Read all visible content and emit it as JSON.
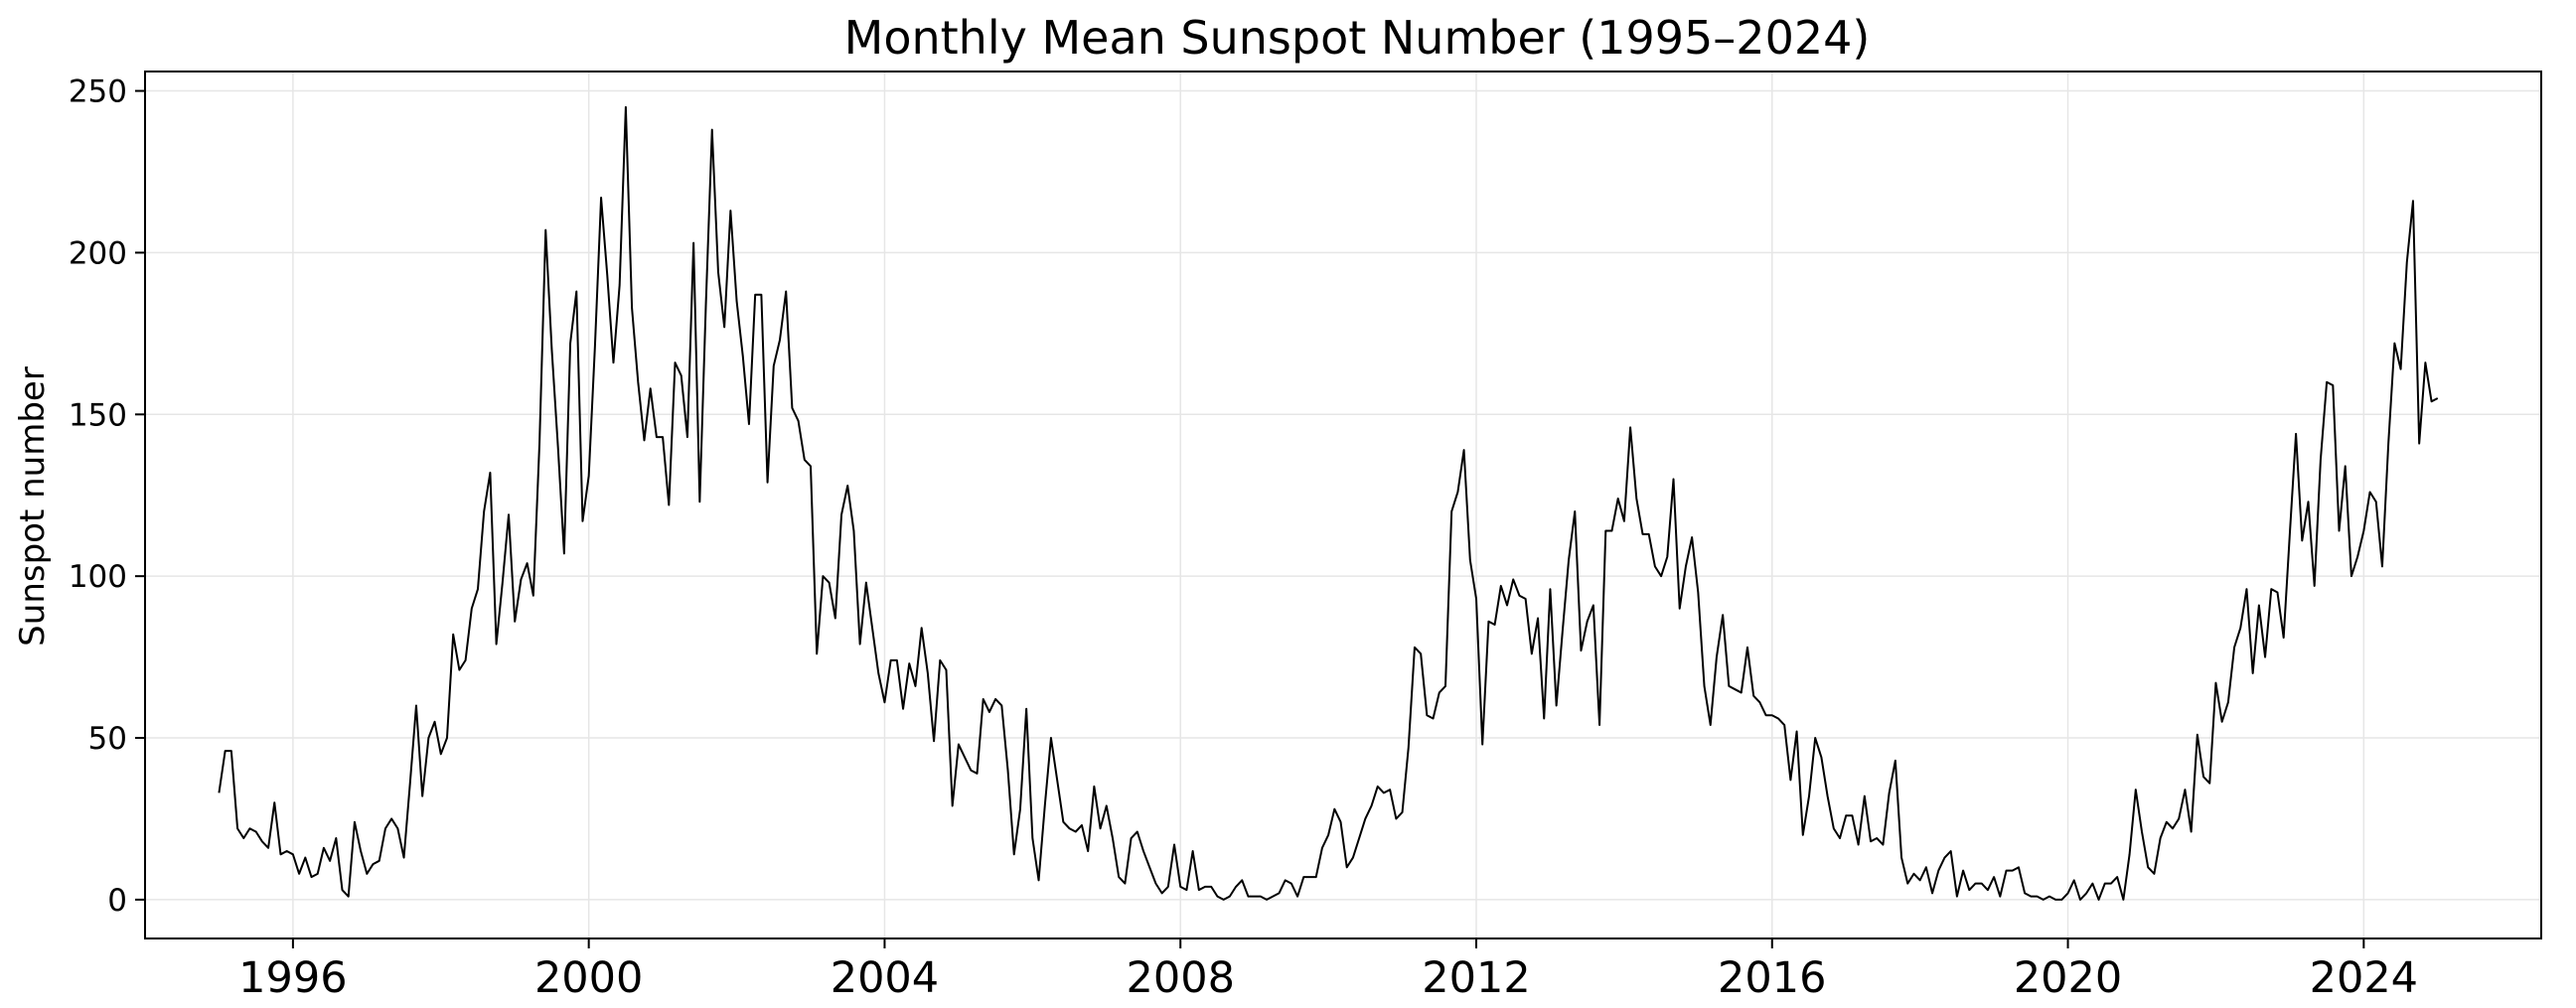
{
  "chart_data": {
    "type": "line",
    "title": "Monthly Mean Sunspot Number (1995–2024)",
    "xlabel": "",
    "ylabel": "Sunspot number",
    "xlim": [
      1994.0,
      2026.4
    ],
    "ylim": [
      -12,
      256
    ],
    "x_ticks": [
      1996,
      2000,
      2004,
      2008,
      2012,
      2016,
      2020,
      2024
    ],
    "x_tick_labels": [
      "1996",
      "2000",
      "2004",
      "2008",
      "2012",
      "2016",
      "2020",
      "2024"
    ],
    "y_ticks": [
      0,
      50,
      100,
      150,
      200,
      250
    ],
    "y_tick_labels": [
      "0",
      "50",
      "100",
      "150",
      "200",
      "250"
    ],
    "grid": true,
    "legend": "none",
    "line_color": "#000000",
    "grid_color": "#e6e6e6",
    "series": [
      {
        "start_year": 1995,
        "start_month": 1,
        "frequency": "monthly",
        "values": [
          33,
          46,
          46,
          22,
          19,
          22,
          21,
          18,
          16,
          30,
          14,
          15,
          14,
          8,
          13,
          7,
          8,
          16,
          12,
          19,
          3,
          1,
          24,
          15,
          8,
          11,
          12,
          22,
          25,
          22,
          13,
          36,
          60,
          32,
          50,
          55,
          45,
          50,
          82,
          71,
          74,
          90,
          96,
          120,
          132,
          79,
          98,
          119,
          86,
          99,
          104,
          94,
          141,
          207,
          170,
          140,
          107,
          172,
          188,
          117,
          131,
          171,
          217,
          193,
          166,
          190,
          245,
          183,
          160,
          142,
          158,
          143,
          143,
          122,
          166,
          162,
          143,
          203,
          123,
          184,
          238,
          194,
          177,
          213,
          185,
          168,
          147,
          187,
          187,
          129,
          165,
          173,
          188,
          152,
          148,
          136,
          134,
          76,
          100,
          98,
          87,
          119,
          128,
          114,
          79,
          98,
          84,
          70,
          61,
          74,
          74,
          59,
          73,
          66,
          84,
          70,
          49,
          74,
          71,
          29,
          48,
          44,
          40,
          39,
          62,
          58,
          62,
          60,
          40,
          14,
          28,
          59,
          19,
          6,
          29,
          50,
          37,
          24,
          22,
          21,
          23,
          15,
          35,
          22,
          29,
          19,
          7,
          5,
          19,
          21,
          15,
          10,
          5,
          2,
          4,
          17,
          4,
          3,
          15,
          3,
          4,
          4,
          1,
          0,
          1,
          4,
          6,
          1,
          1,
          1,
          0,
          1,
          2,
          6,
          5,
          1,
          7,
          7,
          7,
          16,
          20,
          28,
          24,
          10,
          13,
          19,
          25,
          29,
          35,
          33,
          34,
          25,
          27,
          47,
          78,
          76,
          57,
          56,
          64,
          66,
          120,
          126,
          139,
          105,
          93,
          48,
          86,
          85,
          97,
          91,
          99,
          94,
          93,
          76,
          87,
          56,
          96,
          60,
          83,
          105,
          120,
          77,
          86,
          91,
          54,
          114,
          114,
          124,
          117,
          146,
          124,
          113,
          113,
          103,
          100,
          106,
          130,
          90,
          103,
          112,
          95,
          66,
          54,
          75,
          88,
          66,
          65,
          64,
          78,
          63,
          61,
          57,
          57,
          56,
          54,
          37,
          52,
          20,
          32,
          50,
          44,
          32,
          22,
          19,
          26,
          26,
          17,
          32,
          18,
          19,
          17,
          33,
          43,
          13,
          5,
          8,
          6,
          10,
          2,
          9,
          13,
          15,
          1,
          9,
          3,
          5,
          5,
          3,
          7,
          1,
          9,
          9,
          10,
          2,
          1,
          1,
          0,
          1,
          0,
          0,
          2,
          6,
          0,
          2,
          5,
          0,
          5,
          5,
          7,
          0,
          14,
          34,
          21,
          10,
          8,
          19,
          24,
          22,
          25,
          34,
          21,
          51,
          38,
          36,
          67,
          55,
          61,
          78,
          84,
          96,
          70,
          91,
          75,
          96,
          95,
          81,
          113,
          144,
          111,
          123,
          97,
          136,
          160,
          159,
          114,
          134,
          100,
          106,
          114,
          126,
          123,
          103,
          141,
          172,
          164,
          197,
          216,
          141,
          166,
          154,
          155
        ]
      }
    ]
  }
}
